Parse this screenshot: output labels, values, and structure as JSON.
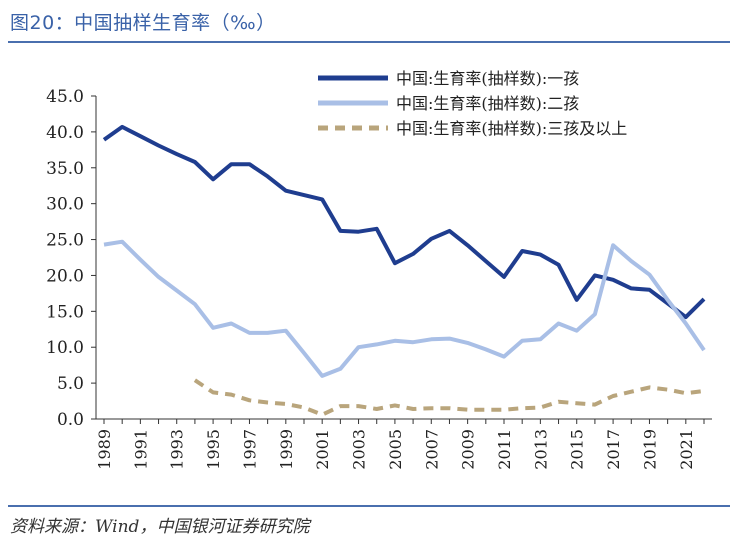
{
  "header": {
    "title": "图20：中国抽样生育率（‰）"
  },
  "footer": {
    "source": "资料来源：Wind，中国银河证券研究院"
  },
  "colors": {
    "rule": "#4a6fae",
    "axis": "#333333"
  },
  "chart_data": {
    "type": "line",
    "title": "图20：中国抽样生育率（‰）",
    "xlabel": "",
    "ylabel": "",
    "ylim": [
      0,
      45
    ],
    "yticks": [
      "0.0",
      "5.0",
      "10.0",
      "15.0",
      "20.0",
      "25.0",
      "30.0",
      "35.0",
      "40.0",
      "45.0"
    ],
    "x_tick_labels": [
      "1989",
      "1991",
      "1993",
      "1995",
      "1997",
      "1999",
      "2001",
      "2003",
      "2005",
      "2007",
      "2009",
      "2011",
      "2013",
      "2015",
      "2017",
      "2019",
      "2021"
    ],
    "x": [
      1989,
      1990,
      1991,
      1992,
      1993,
      1994,
      1995,
      1996,
      1997,
      1998,
      1999,
      2000,
      2001,
      2002,
      2003,
      2004,
      2005,
      2006,
      2007,
      2008,
      2009,
      2010,
      2011,
      2012,
      2013,
      2014,
      2015,
      2016,
      2017,
      2018,
      2019,
      2020,
      2021,
      2022
    ],
    "legend_position": "top-right",
    "grid": false,
    "series": [
      {
        "name": "中国:生育率(抽样数):一孩",
        "color": "#1f3d8f",
        "width": 4,
        "dash": "",
        "values": [
          38.9,
          40.7,
          39.4,
          38.1,
          36.9,
          35.8,
          33.4,
          35.5,
          35.5,
          33.8,
          31.8,
          31.2,
          30.6,
          26.2,
          26.1,
          26.5,
          21.7,
          23.0,
          25.1,
          26.2,
          24.2,
          22.0,
          19.8,
          23.4,
          22.9,
          21.5,
          16.6,
          20.0,
          19.4,
          18.2,
          18.0,
          16.1,
          14.2,
          16.7
        ]
      },
      {
        "name": "中国:生育率(抽样数):二孩",
        "color": "#a9bfe6",
        "width": 4,
        "dash": "",
        "values": [
          24.3,
          24.7,
          22.2,
          19.8,
          17.9,
          16.0,
          12.7,
          13.3,
          12.0,
          12.0,
          12.3,
          9.2,
          6.0,
          7.0,
          10.0,
          10.4,
          10.9,
          10.7,
          11.1,
          11.2,
          10.6,
          9.7,
          8.7,
          10.9,
          11.1,
          13.3,
          12.3,
          14.6,
          24.2,
          22.0,
          20.1,
          16.6,
          13.3,
          9.6
        ]
      },
      {
        "name": "中国:生育率(抽样数):三孩及以上",
        "color": "#b9a57c",
        "width": 4,
        "dash": "10 7",
        "values": [
          null,
          null,
          null,
          null,
          null,
          5.4,
          3.7,
          3.4,
          2.6,
          2.3,
          2.1,
          1.6,
          0.6,
          1.8,
          1.8,
          1.4,
          1.9,
          1.4,
          1.5,
          1.5,
          1.3,
          1.3,
          1.3,
          1.5,
          1.6,
          2.4,
          2.2,
          2.0,
          3.2,
          3.8,
          4.4,
          4.1,
          3.6,
          3.9
        ]
      }
    ]
  }
}
